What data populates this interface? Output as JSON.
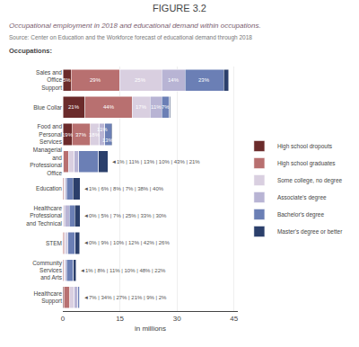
{
  "chart_data": {
    "type": "bar",
    "orientation": "horizontal",
    "stacked": true,
    "title": "FIGURE 3.2",
    "subtitle": "Occupational employment in 2018 and educational demand within occupations.",
    "source": "Source: Center on Education and the Workforce forecast of educational demand through 2018",
    "ylabel": "Occupations:",
    "xlabel": "in millions",
    "categories": [
      "Sales and\nOffice\nSupport",
      "Blue Collar",
      "Food and\nPersonal\nServices",
      "Managerial\nand\nProfessional\nOffice",
      "Education",
      "Healthcare\nProfessional\nand Technical",
      "STEM",
      "Community\nServices\nand Arts",
      "Healthcare\nSupport"
    ],
    "series": [
      {
        "name": "High school dropouts",
        "color": "#6b2b2b",
        "values": [
          2.2,
          5.88,
          2.47,
          0.12,
          0.045,
          0,
          0,
          0.035,
          0.315
        ]
      },
      {
        "name": "High school graduates",
        "color": "#b87070",
        "values": [
          12.76,
          12.32,
          4.81,
          1.32,
          0.27,
          0.225,
          0.405,
          0.28,
          1.53
        ]
      },
      {
        "name": "Some college, no degree",
        "color": "#d9cfe0",
        "values": [
          11,
          4.76,
          2.34,
          1.56,
          0.36,
          0.315,
          0.45,
          0.385,
          1.215
        ]
      },
      {
        "name": "Associate's degree",
        "color": "#b8b4d4",
        "values": [
          6.16,
          3.08,
          1.43,
          1.2,
          0.315,
          1.125,
          0.54,
          0.35,
          0.945
        ]
      },
      {
        "name": "Bachelor's degree",
        "color": "#6b7fb5",
        "values": [
          10.12,
          1.96,
          1.69,
          5.16,
          1.71,
          1.485,
          1.89,
          1.68,
          0.405
        ]
      },
      {
        "name": "Master's degree or better",
        "color": "#2b3f6b",
        "values": [
          1.32,
          0.28,
          0.26,
          2.52,
          1.8,
          1.35,
          1.17,
          0.77,
          0.09
        ]
      }
    ],
    "xlim": [
      0,
      46
    ],
    "xticks": [
      0,
      15,
      30,
      45
    ],
    "grid": true,
    "legend": "right",
    "annotations": [
      {
        "category": "Sales and\nOffice\nSupport",
        "series": "High school dropouts",
        "text": "5%"
      },
      {
        "category": "Sales and\nOffice\nSupport",
        "series": "High school graduates",
        "text": "29%"
      },
      {
        "category": "Sales and\nOffice\nSupport",
        "series": "Some college, no degree",
        "text": "25%"
      },
      {
        "category": "Sales and\nOffice\nSupport",
        "series": "Associate's degree",
        "text": "14%"
      },
      {
        "category": "Sales and\nOffice\nSupport",
        "series": "Bachelor's degree",
        "text": "23%"
      },
      {
        "category": "Blue Collar",
        "series": "High school dropouts",
        "text": "21%"
      },
      {
        "category": "Blue Collar",
        "series": "High school graduates",
        "text": "44%"
      },
      {
        "category": "Blue Collar",
        "series": "Some college, no degree",
        "text": "17%"
      },
      {
        "category": "Blue Collar",
        "series": "Associate's degree",
        "text": "11%"
      },
      {
        "category": "Blue Collar",
        "series": "Bachelor's degree",
        "text": "7%"
      },
      {
        "category": "Food and\nPersonal\nServices",
        "series": "High school dropouts",
        "text": "19%"
      },
      {
        "category": "Food and\nPersonal\nServices",
        "series": "High school graduates",
        "text": "37%"
      },
      {
        "category": "Food and\nPersonal\nServices",
        "series": "Some college, no degree",
        "text": "18%"
      },
      {
        "category": "Food and\nPersonal\nServices",
        "series": "Associate's degree",
        "text": "11%"
      },
      {
        "category": "Food and\nPersonal\nServices",
        "series": "Bachelor's degree",
        "text": "13%"
      },
      {
        "category": "Managerial\nand\nProfessional\nOffice",
        "text": "◄1% | 11% | 13% | 10% | 43% | 21%"
      },
      {
        "category": "Education",
        "text": "◄1% | 6% | 8% | 7% | 38% | 40%"
      },
      {
        "category": "Healthcare\nProfessional\nand Technical",
        "text": "◄0% | 5% | 7% | 25% | 33% | 30%"
      },
      {
        "category": "STEM",
        "text": "◄0% | 9% | 10% | 12% | 42% | 26%"
      },
      {
        "category": "Community\nServices\nand Arts",
        "text": "◄1% | 8% | 11% | 10% | 48% | 22%"
      },
      {
        "category": "Healthcare\nSupport",
        "text": "◄7% | 34% | 27% | 21% | 9% | 2%"
      }
    ]
  }
}
